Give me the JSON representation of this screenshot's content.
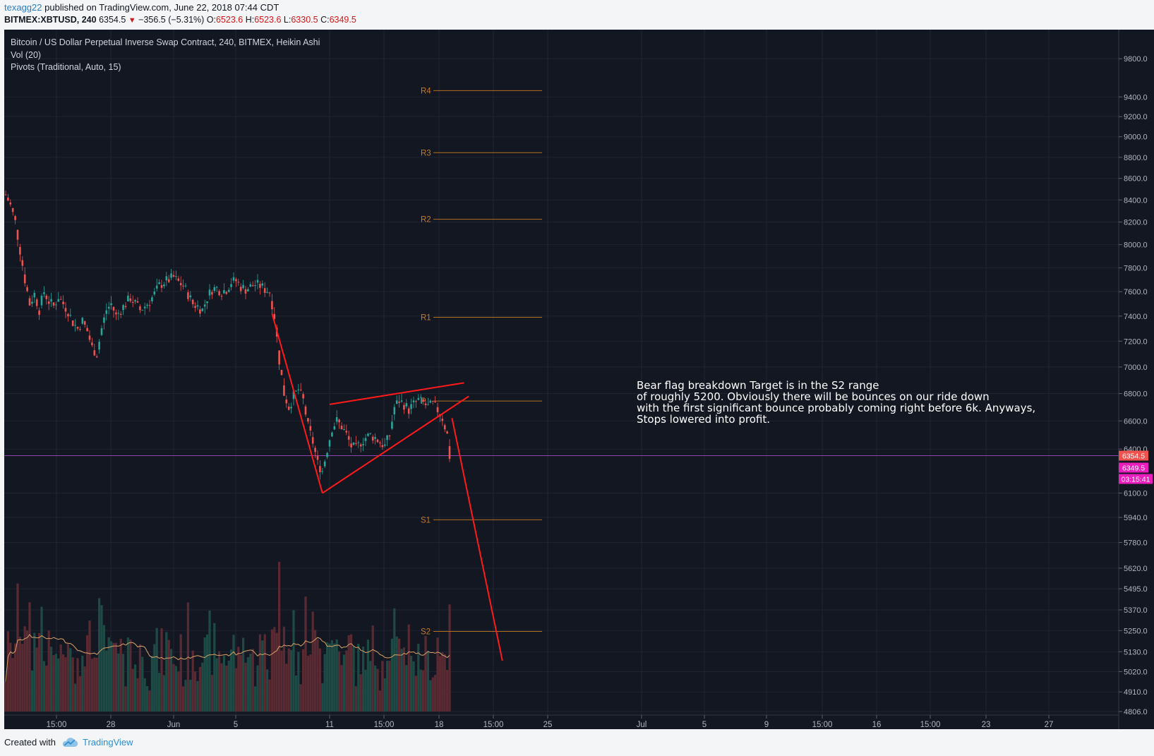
{
  "header": {
    "author": "texagg22",
    "published_text": "published on TradingView.com, June 22, 2018 07:44 CDT"
  },
  "quote": {
    "symbol": "BITMEX:XBTUSD, 240",
    "last": "6354.5",
    "change": "−356.5 (−5.31%)",
    "o_label": "O:",
    "o": "6523.6",
    "h_label": "H:",
    "h": "6523.6",
    "l_label": "L:",
    "l": "6330.5",
    "c_label": "C:",
    "c": "6349.5"
  },
  "legend": {
    "series_title": "Bitcoin / US Dollar Perpetual Inverse Swap Contract, 240, BITMEX, Heikin Ashi",
    "volume": "Vol (20)",
    "pivots": "Pivots (Traditional, Auto, 15)"
  },
  "annotation": {
    "lines": [
      "Bear flag breakdown Target is in the S2 range",
      "of roughly 5200.  Obviously there will be bounces on our ride down",
      "with the first significant bounce probably coming right before 6k. Anyways,",
      "Stops lowered into profit."
    ]
  },
  "price_tags": {
    "last": "6354.5",
    "close": "6349.5",
    "countdown": "03:15:41"
  },
  "footer": {
    "created_with": "Created with",
    "brand": "TradingView"
  },
  "colors": {
    "background": "#131722",
    "up_candle": "#26a69a",
    "down_candle": "#ef5350",
    "pivot_line": "#b07020",
    "drawing": "#ff1a1a",
    "last_price_tag": "#ef5350",
    "close_tag": "#e91ebd"
  },
  "chart_data": {
    "type": "candlestick",
    "style": "Heikin Ashi",
    "symbol": "BITMEX:XBTUSD",
    "interval_minutes": 240,
    "y_scale": "log",
    "ylim": [
      4806,
      9900
    ],
    "grid": true,
    "y_ticks": [
      "9800.0",
      "9400.0",
      "9200.0",
      "9000.0",
      "8800.0",
      "8600.0",
      "8400.0",
      "8200.0",
      "8000.0",
      "7800.0",
      "7600.0",
      "7400.0",
      "7200.0",
      "7000.0",
      "6800.0",
      "6600.0",
      "6400.0",
      "6100.0",
      "5940.0",
      "5780.0",
      "5620.0",
      "5495.0",
      "5370.0",
      "5250.0",
      "5130.0",
      "5020.0",
      "4910.0",
      "4806.0"
    ],
    "x_ticks": [
      "15:00",
      "28",
      "Jun",
      "5",
      "11",
      "15:00",
      "18",
      "15:00",
      "25",
      "Jul",
      "5",
      "9",
      "15:00",
      "16",
      "15:00",
      "23",
      "27"
    ],
    "pivots": [
      {
        "name": "R4",
        "value": 9465
      },
      {
        "name": "R3",
        "value": 8845
      },
      {
        "name": "R2",
        "value": 8225
      },
      {
        "name": "R1",
        "value": 7390
      },
      {
        "name": "P",
        "value": 6745
      },
      {
        "name": "S1",
        "value": 5925
      },
      {
        "name": "S2",
        "value": 5245
      }
    ],
    "price_path": [
      [
        "2018-05-22 12:00",
        8450
      ],
      [
        "2018-05-22 20:00",
        8350
      ],
      [
        "2018-05-23 04:00",
        8200
      ],
      [
        "2018-05-23 12:00",
        7950
      ],
      [
        "2018-05-23 20:00",
        7700
      ],
      [
        "2018-05-24 04:00",
        7500
      ],
      [
        "2018-05-24 12:00",
        7580
      ],
      [
        "2018-05-24 20:00",
        7450
      ],
      [
        "2018-05-25 04:00",
        7600
      ],
      [
        "2018-05-25 12:00",
        7520
      ],
      [
        "2018-05-25 20:00",
        7480
      ],
      [
        "2018-05-26 04:00",
        7560
      ],
      [
        "2018-05-26 12:00",
        7500
      ],
      [
        "2018-05-26 20:00",
        7440
      ],
      [
        "2018-05-27 04:00",
        7350
      ],
      [
        "2018-05-27 12:00",
        7300
      ],
      [
        "2018-05-27 20:00",
        7360
      ],
      [
        "2018-05-28 04:00",
        7280
      ],
      [
        "2018-05-28 12:00",
        7150
      ],
      [
        "2018-05-28 20:00",
        7100
      ],
      [
        "2018-05-29 04:00",
        7300
      ],
      [
        "2018-05-29 12:00",
        7450
      ],
      [
        "2018-05-29 20:00",
        7500
      ],
      [
        "2018-05-30 04:00",
        7400
      ],
      [
        "2018-05-30 12:00",
        7450
      ],
      [
        "2018-05-30 20:00",
        7500
      ],
      [
        "2018-05-31 04:00",
        7550
      ],
      [
        "2018-05-31 12:00",
        7500
      ],
      [
        "2018-05-31 20:00",
        7450
      ],
      [
        "2018-06-01 04:00",
        7480
      ],
      [
        "2018-06-01 12:00",
        7520
      ],
      [
        "2018-06-01 20:00",
        7580
      ],
      [
        "2018-06-02 04:00",
        7650
      ],
      [
        "2018-06-02 12:00",
        7680
      ],
      [
        "2018-06-02 20:00",
        7700
      ],
      [
        "2018-06-03 04:00",
        7720
      ],
      [
        "2018-06-03 12:00",
        7680
      ],
      [
        "2018-06-03 20:00",
        7650
      ],
      [
        "2018-06-04 04:00",
        7580
      ],
      [
        "2018-06-04 12:00",
        7500
      ],
      [
        "2018-06-04 20:00",
        7480
      ],
      [
        "2018-06-05 04:00",
        7450
      ],
      [
        "2018-06-05 12:00",
        7550
      ],
      [
        "2018-06-05 20:00",
        7620
      ],
      [
        "2018-06-06 04:00",
        7630
      ],
      [
        "2018-06-06 12:00",
        7600
      ],
      [
        "2018-06-06 20:00",
        7620
      ],
      [
        "2018-06-07 04:00",
        7680
      ],
      [
        "2018-06-07 12:00",
        7690
      ],
      [
        "2018-06-07 20:00",
        7640
      ],
      [
        "2018-06-08 04:00",
        7620
      ],
      [
        "2018-06-08 12:00",
        7640
      ],
      [
        "2018-06-08 20:00",
        7660
      ],
      [
        "2018-06-09 04:00",
        7650
      ],
      [
        "2018-06-09 12:00",
        7620
      ],
      [
        "2018-06-09 20:00",
        7600
      ],
      [
        "2018-06-10 04:00",
        7400
      ],
      [
        "2018-06-10 12:00",
        7050
      ],
      [
        "2018-06-10 20:00",
        6800
      ],
      [
        "2018-06-11 04:00",
        6700
      ],
      [
        "2018-06-11 12:00",
        6780
      ],
      [
        "2018-06-11 20:00",
        6830
      ],
      [
        "2018-06-12 04:00",
        6750
      ],
      [
        "2018-06-12 12:00",
        6560
      ],
      [
        "2018-06-12 20:00",
        6450
      ],
      [
        "2018-06-13 04:00",
        6300
      ],
      [
        "2018-06-13 12:00",
        6250
      ],
      [
        "2018-06-13 20:00",
        6400
      ],
      [
        "2018-06-14 04:00",
        6550
      ],
      [
        "2018-06-14 12:00",
        6600
      ],
      [
        "2018-06-14 20:00",
        6560
      ],
      [
        "2018-06-15 04:00",
        6500
      ],
      [
        "2018-06-15 12:00",
        6420
      ],
      [
        "2018-06-15 20:00",
        6400
      ],
      [
        "2018-06-16 04:00",
        6450
      ],
      [
        "2018-06-16 12:00",
        6480
      ],
      [
        "2018-06-16 20:00",
        6500
      ],
      [
        "2018-06-17 04:00",
        6480
      ],
      [
        "2018-06-17 12:00",
        6450
      ],
      [
        "2018-06-17 20:00",
        6420
      ],
      [
        "2018-06-18 04:00",
        6500
      ],
      [
        "2018-06-18 12:00",
        6700
      ],
      [
        "2018-06-18 20:00",
        6750
      ],
      [
        "2018-06-19 04:00",
        6720
      ],
      [
        "2018-06-19 12:00",
        6680
      ],
      [
        "2018-06-19 20:00",
        6720
      ],
      [
        "2018-06-20 04:00",
        6750
      ],
      [
        "2018-06-20 12:00",
        6730
      ],
      [
        "2018-06-20 20:00",
        6700
      ],
      [
        "2018-06-21 04:00",
        6720
      ],
      [
        "2018-06-21 12:00",
        6680
      ],
      [
        "2018-06-21 20:00",
        6620
      ],
      [
        "2018-06-22 04:00",
        6500
      ],
      [
        "2018-06-22 08:00",
        6349.5
      ]
    ],
    "drawings": [
      {
        "name": "flagpole",
        "points": [
          [
            "2018-06-10 00:00",
            7420
          ],
          [
            "2018-06-13 12:00",
            6100
          ]
        ]
      },
      {
        "name": "flag-upper",
        "points": [
          [
            "2018-06-14 00:00",
            6720
          ],
          [
            "2018-06-23 08:00",
            6880
          ]
        ]
      },
      {
        "name": "flag-lower",
        "points": [
          [
            "2018-06-13 12:00",
            6100
          ],
          [
            "2018-06-23 16:00",
            6780
          ]
        ]
      },
      {
        "name": "projection",
        "points": [
          [
            "2018-06-22 12:00",
            6620
          ],
          [
            "2018-06-26 00:00",
            5080
          ]
        ]
      }
    ]
  }
}
